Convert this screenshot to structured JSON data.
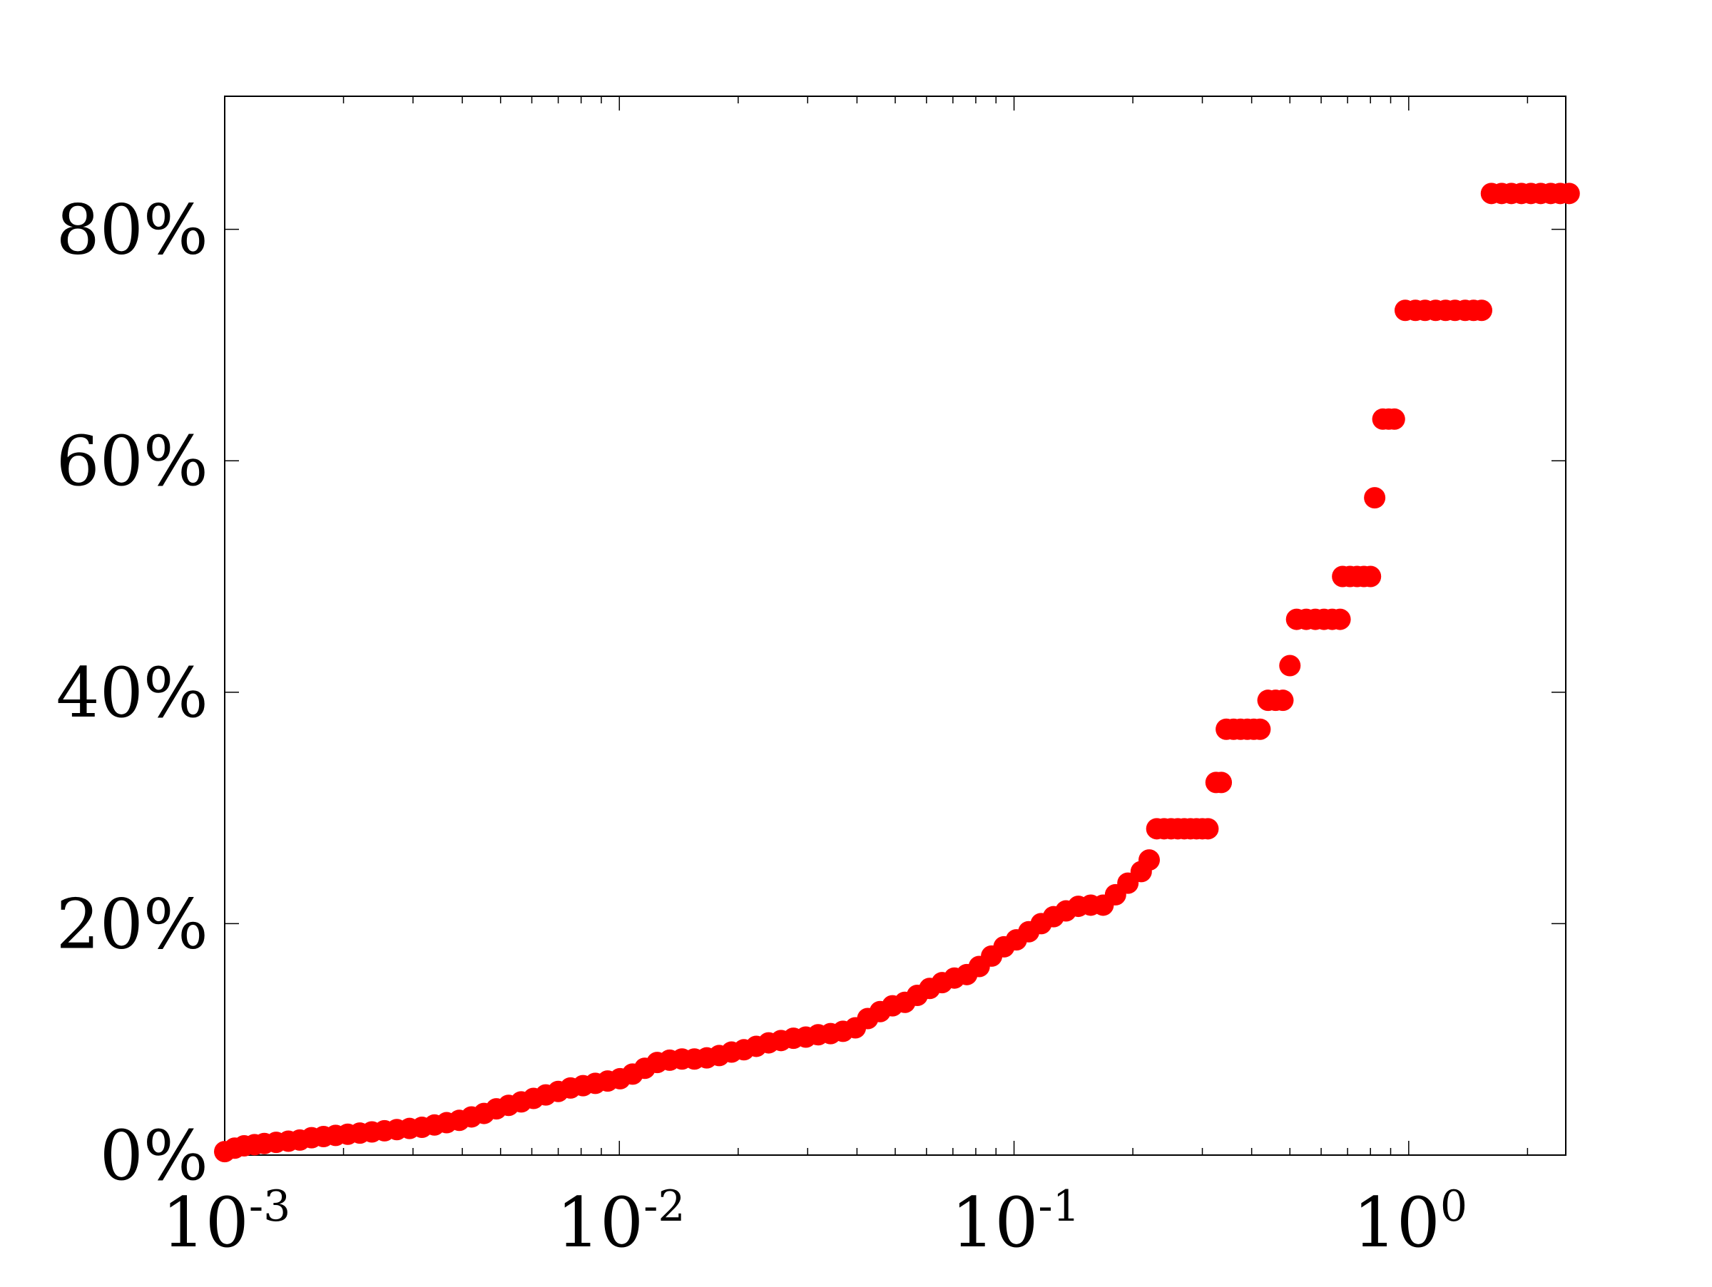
{
  "chart_data": {
    "type": "scatter",
    "title": "",
    "xlabel": "",
    "ylabel": "",
    "x_scale": "log",
    "xlim": [
      0.001,
      2.5
    ],
    "ylim": [
      0,
      0.915
    ],
    "x_ticks": [
      {
        "value": 0.001,
        "base": "10",
        "exp": "-3"
      },
      {
        "value": 0.01,
        "base": "10",
        "exp": "-2"
      },
      {
        "value": 0.1,
        "base": "10",
        "exp": "-1"
      },
      {
        "value": 1,
        "base": "10",
        "exp": "0"
      }
    ],
    "y_ticks": [
      {
        "value": 0,
        "label": "0%"
      },
      {
        "value": 0.2,
        "label": "20%"
      },
      {
        "value": 0.4,
        "label": "40%"
      },
      {
        "value": 0.6,
        "label": "60%"
      },
      {
        "value": 0.8,
        "label": "80%"
      }
    ],
    "grid": false,
    "marker_color": "#ff0000",
    "series": [
      {
        "points": [
          [
            0.001,
            0.003
          ],
          [
            0.00106,
            0.006
          ],
          [
            0.00112,
            0.008
          ],
          [
            0.00119,
            0.009
          ],
          [
            0.00126,
            0.01
          ],
          [
            0.00135,
            0.011
          ],
          [
            0.00145,
            0.012
          ],
          [
            0.00155,
            0.013
          ],
          [
            0.00166,
            0.015
          ],
          [
            0.00178,
            0.016
          ],
          [
            0.00191,
            0.017
          ],
          [
            0.00205,
            0.018
          ],
          [
            0.0022,
            0.019
          ],
          [
            0.00236,
            0.02
          ],
          [
            0.00254,
            0.021
          ],
          [
            0.00273,
            0.022
          ],
          [
            0.00294,
            0.023
          ],
          [
            0.00316,
            0.024
          ],
          [
            0.0034,
            0.026
          ],
          [
            0.00365,
            0.028
          ],
          [
            0.00393,
            0.03
          ],
          [
            0.00422,
            0.033
          ],
          [
            0.00454,
            0.036
          ],
          [
            0.00488,
            0.04
          ],
          [
            0.00524,
            0.043
          ],
          [
            0.00564,
            0.046
          ],
          [
            0.00606,
            0.049
          ],
          [
            0.00651,
            0.052
          ],
          [
            0.007,
            0.055
          ],
          [
            0.00752,
            0.058
          ],
          [
            0.00809,
            0.06
          ],
          [
            0.00869,
            0.062
          ],
          [
            0.00934,
            0.064
          ],
          [
            0.01004,
            0.066
          ],
          [
            0.0108,
            0.07
          ],
          [
            0.0116,
            0.075
          ],
          [
            0.01247,
            0.08
          ],
          [
            0.01341,
            0.082
          ],
          [
            0.01441,
            0.083
          ],
          [
            0.01549,
            0.083
          ],
          [
            0.01665,
            0.084
          ],
          [
            0.0179,
            0.086
          ],
          [
            0.01924,
            0.089
          ],
          [
            0.02068,
            0.091
          ],
          [
            0.02223,
            0.094
          ],
          [
            0.02389,
            0.097
          ],
          [
            0.02568,
            0.099
          ],
          [
            0.02761,
            0.101
          ],
          [
            0.02968,
            0.102
          ],
          [
            0.0319,
            0.104
          ],
          [
            0.03429,
            0.105
          ],
          [
            0.03686,
            0.107
          ],
          [
            0.03962,
            0.11
          ],
          [
            0.04259,
            0.118
          ],
          [
            0.04578,
            0.124
          ],
          [
            0.04921,
            0.129
          ],
          [
            0.0529,
            0.132
          ],
          [
            0.05686,
            0.138
          ],
          [
            0.06112,
            0.144
          ],
          [
            0.0657,
            0.149
          ],
          [
            0.07063,
            0.153
          ],
          [
            0.07592,
            0.156
          ],
          [
            0.08161,
            0.163
          ],
          [
            0.08773,
            0.172
          ],
          [
            0.09431,
            0.18
          ],
          [
            0.10138,
            0.186
          ],
          [
            0.10898,
            0.193
          ],
          [
            0.11715,
            0.2
          ],
          [
            0.12593,
            0.206
          ],
          [
            0.13537,
            0.211
          ],
          [
            0.14552,
            0.215
          ],
          [
            0.15643,
            0.216
          ],
          [
            0.16815,
            0.216
          ],
          [
            0.18076,
            0.225
          ],
          [
            0.19431,
            0.235
          ],
          [
            0.21,
            0.245
          ],
          [
            0.22,
            0.255
          ],
          [
            0.23,
            0.282
          ],
          [
            0.24,
            0.282
          ],
          [
            0.25,
            0.282
          ],
          [
            0.26,
            0.282
          ],
          [
            0.27,
            0.282
          ],
          [
            0.28,
            0.282
          ],
          [
            0.29,
            0.282
          ],
          [
            0.3,
            0.282
          ],
          [
            0.31,
            0.282
          ],
          [
            0.325,
            0.322
          ],
          [
            0.335,
            0.322
          ],
          [
            0.345,
            0.368
          ],
          [
            0.36,
            0.368
          ],
          [
            0.375,
            0.368
          ],
          [
            0.39,
            0.368
          ],
          [
            0.405,
            0.368
          ],
          [
            0.42,
            0.368
          ],
          [
            0.44,
            0.393
          ],
          [
            0.46,
            0.393
          ],
          [
            0.48,
            0.393
          ],
          [
            0.5,
            0.423
          ],
          [
            0.52,
            0.463
          ],
          [
            0.55,
            0.463
          ],
          [
            0.58,
            0.463
          ],
          [
            0.61,
            0.463
          ],
          [
            0.64,
            0.463
          ],
          [
            0.67,
            0.463
          ],
          [
            0.68,
            0.5
          ],
          [
            0.71,
            0.5
          ],
          [
            0.74,
            0.5
          ],
          [
            0.77,
            0.5
          ],
          [
            0.8,
            0.5
          ],
          [
            0.82,
            0.568
          ],
          [
            0.86,
            0.636
          ],
          [
            0.89,
            0.636
          ],
          [
            0.92,
            0.636
          ],
          [
            0.98,
            0.73
          ],
          [
            1.04,
            0.73
          ],
          [
            1.1,
            0.73
          ],
          [
            1.17,
            0.73
          ],
          [
            1.24,
            0.73
          ],
          [
            1.31,
            0.73
          ],
          [
            1.39,
            0.73
          ],
          [
            1.46,
            0.73
          ],
          [
            1.53,
            0.73
          ],
          [
            1.62,
            0.831
          ],
          [
            1.72,
            0.831
          ],
          [
            1.82,
            0.831
          ],
          [
            1.93,
            0.831
          ],
          [
            2.04,
            0.831
          ],
          [
            2.16,
            0.831
          ],
          [
            2.29,
            0.831
          ],
          [
            2.42,
            0.831
          ],
          [
            2.55,
            0.831
          ]
        ]
      }
    ]
  }
}
